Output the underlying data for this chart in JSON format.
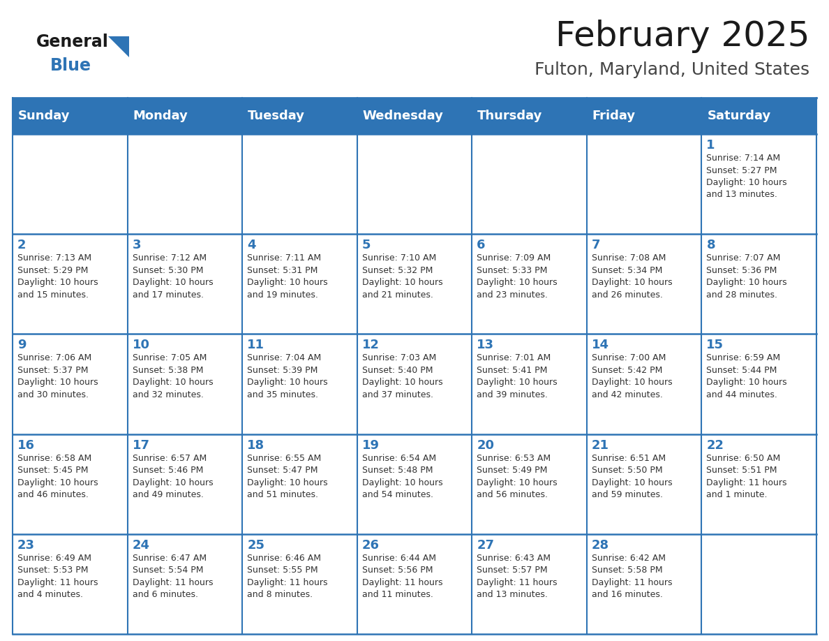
{
  "title": "February 2025",
  "subtitle": "Fulton, Maryland, United States",
  "header_bg": "#2E74B5",
  "header_text_color": "#FFFFFF",
  "cell_bg": "#FFFFFF",
  "border_color": "#2E74B5",
  "thin_border_color": "#AAAAAA",
  "day_names": [
    "Sunday",
    "Monday",
    "Tuesday",
    "Wednesday",
    "Thursday",
    "Friday",
    "Saturday"
  ],
  "title_color": "#1a1a1a",
  "subtitle_color": "#444444",
  "day_number_color": "#2E74B5",
  "text_color": "#333333",
  "logo_general_color": "#1a1a1a",
  "logo_blue_color": "#2E74B5",
  "title_fontsize": 36,
  "subtitle_fontsize": 18,
  "header_fontsize": 13,
  "day_num_fontsize": 13,
  "info_fontsize": 9,
  "weeks": [
    [
      {
        "day": null,
        "info": null
      },
      {
        "day": null,
        "info": null
      },
      {
        "day": null,
        "info": null
      },
      {
        "day": null,
        "info": null
      },
      {
        "day": null,
        "info": null
      },
      {
        "day": null,
        "info": null
      },
      {
        "day": 1,
        "info": "Sunrise: 7:14 AM\nSunset: 5:27 PM\nDaylight: 10 hours\nand 13 minutes."
      }
    ],
    [
      {
        "day": 2,
        "info": "Sunrise: 7:13 AM\nSunset: 5:29 PM\nDaylight: 10 hours\nand 15 minutes."
      },
      {
        "day": 3,
        "info": "Sunrise: 7:12 AM\nSunset: 5:30 PM\nDaylight: 10 hours\nand 17 minutes."
      },
      {
        "day": 4,
        "info": "Sunrise: 7:11 AM\nSunset: 5:31 PM\nDaylight: 10 hours\nand 19 minutes."
      },
      {
        "day": 5,
        "info": "Sunrise: 7:10 AM\nSunset: 5:32 PM\nDaylight: 10 hours\nand 21 minutes."
      },
      {
        "day": 6,
        "info": "Sunrise: 7:09 AM\nSunset: 5:33 PM\nDaylight: 10 hours\nand 23 minutes."
      },
      {
        "day": 7,
        "info": "Sunrise: 7:08 AM\nSunset: 5:34 PM\nDaylight: 10 hours\nand 26 minutes."
      },
      {
        "day": 8,
        "info": "Sunrise: 7:07 AM\nSunset: 5:36 PM\nDaylight: 10 hours\nand 28 minutes."
      }
    ],
    [
      {
        "day": 9,
        "info": "Sunrise: 7:06 AM\nSunset: 5:37 PM\nDaylight: 10 hours\nand 30 minutes."
      },
      {
        "day": 10,
        "info": "Sunrise: 7:05 AM\nSunset: 5:38 PM\nDaylight: 10 hours\nand 32 minutes."
      },
      {
        "day": 11,
        "info": "Sunrise: 7:04 AM\nSunset: 5:39 PM\nDaylight: 10 hours\nand 35 minutes."
      },
      {
        "day": 12,
        "info": "Sunrise: 7:03 AM\nSunset: 5:40 PM\nDaylight: 10 hours\nand 37 minutes."
      },
      {
        "day": 13,
        "info": "Sunrise: 7:01 AM\nSunset: 5:41 PM\nDaylight: 10 hours\nand 39 minutes."
      },
      {
        "day": 14,
        "info": "Sunrise: 7:00 AM\nSunset: 5:42 PM\nDaylight: 10 hours\nand 42 minutes."
      },
      {
        "day": 15,
        "info": "Sunrise: 6:59 AM\nSunset: 5:44 PM\nDaylight: 10 hours\nand 44 minutes."
      }
    ],
    [
      {
        "day": 16,
        "info": "Sunrise: 6:58 AM\nSunset: 5:45 PM\nDaylight: 10 hours\nand 46 minutes."
      },
      {
        "day": 17,
        "info": "Sunrise: 6:57 AM\nSunset: 5:46 PM\nDaylight: 10 hours\nand 49 minutes."
      },
      {
        "day": 18,
        "info": "Sunrise: 6:55 AM\nSunset: 5:47 PM\nDaylight: 10 hours\nand 51 minutes."
      },
      {
        "day": 19,
        "info": "Sunrise: 6:54 AM\nSunset: 5:48 PM\nDaylight: 10 hours\nand 54 minutes."
      },
      {
        "day": 20,
        "info": "Sunrise: 6:53 AM\nSunset: 5:49 PM\nDaylight: 10 hours\nand 56 minutes."
      },
      {
        "day": 21,
        "info": "Sunrise: 6:51 AM\nSunset: 5:50 PM\nDaylight: 10 hours\nand 59 minutes."
      },
      {
        "day": 22,
        "info": "Sunrise: 6:50 AM\nSunset: 5:51 PM\nDaylight: 11 hours\nand 1 minute."
      }
    ],
    [
      {
        "day": 23,
        "info": "Sunrise: 6:49 AM\nSunset: 5:53 PM\nDaylight: 11 hours\nand 4 minutes."
      },
      {
        "day": 24,
        "info": "Sunrise: 6:47 AM\nSunset: 5:54 PM\nDaylight: 11 hours\nand 6 minutes."
      },
      {
        "day": 25,
        "info": "Sunrise: 6:46 AM\nSunset: 5:55 PM\nDaylight: 11 hours\nand 8 minutes."
      },
      {
        "day": 26,
        "info": "Sunrise: 6:44 AM\nSunset: 5:56 PM\nDaylight: 11 hours\nand 11 minutes."
      },
      {
        "day": 27,
        "info": "Sunrise: 6:43 AM\nSunset: 5:57 PM\nDaylight: 11 hours\nand 13 minutes."
      },
      {
        "day": 28,
        "info": "Sunrise: 6:42 AM\nSunset: 5:58 PM\nDaylight: 11 hours\nand 16 minutes."
      },
      {
        "day": null,
        "info": null
      }
    ]
  ]
}
